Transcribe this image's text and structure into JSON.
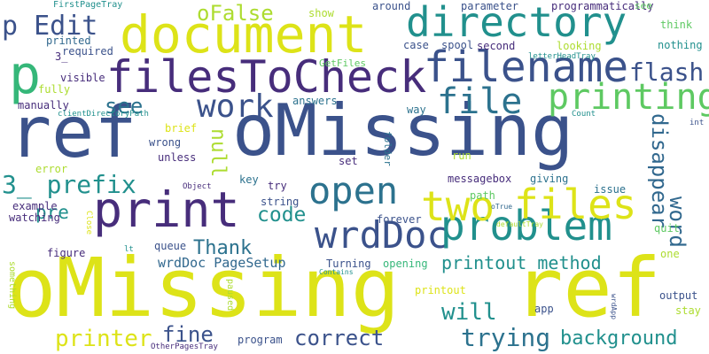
{
  "colors": {
    "background": "#ffffff",
    "navy": "#3b528b",
    "purple": "#472d7b",
    "teal": "#21908d",
    "teal_blue": "#2c728e",
    "green": "#5ec962",
    "bright_green": "#35b779",
    "yellow_green": "#addc30",
    "yellow": "#dde318",
    "blue": "#31688e"
  },
  "words": [
    {
      "text": "oMissing",
      "color": "#dde318"
    },
    {
      "text": "ref",
      "color": "#3b528b"
    },
    {
      "text": "oMissing",
      "color": "#3b528b"
    },
    {
      "text": "ref",
      "color": "#dde318"
    },
    {
      "text": "document",
      "color": "#dde318"
    },
    {
      "text": "directory",
      "color": "#21908d"
    },
    {
      "text": "filesToCheck",
      "color": "#472d7b"
    },
    {
      "text": "filename",
      "color": "#3b528b"
    },
    {
      "text": "print",
      "color": "#472d7b"
    },
    {
      "text": "wrdDoc",
      "color": "#3b528b"
    },
    {
      "text": "problem",
      "color": "#21908d"
    },
    {
      "text": "open",
      "color": "#2c728e"
    },
    {
      "text": "two",
      "color": "#dde318"
    },
    {
      "text": "files",
      "color": "#dde318"
    },
    {
      "text": "file",
      "color": "#2c728e"
    },
    {
      "text": "printing",
      "color": "#5ec962"
    },
    {
      "text": "work",
      "color": "#3b528b"
    },
    {
      "text": "p Edit",
      "color": "#3b528b"
    },
    {
      "text": "p",
      "color": "#35b779"
    },
    {
      "text": "oFalse",
      "color": "#addc30"
    },
    {
      "text": "flash",
      "color": "#3b528b"
    },
    {
      "text": "3_ prefix",
      "color": "#21908d"
    },
    {
      "text": "code",
      "color": "#21908d"
    },
    {
      "text": "pre",
      "color": "#21908d"
    },
    {
      "text": "Thank",
      "color": "#2c728e"
    },
    {
      "text": "see",
      "color": "#2c728e"
    },
    {
      "text": "null",
      "color": "#addc30"
    },
    {
      "text": "word",
      "color": "#31688e"
    },
    {
      "text": "disappear",
      "color": "#31688e"
    },
    {
      "text": "printout method",
      "color": "#21908d"
    },
    {
      "text": "will",
      "color": "#21908d"
    },
    {
      "text": "trying",
      "color": "#2c728e"
    },
    {
      "text": "background",
      "color": "#21908d"
    },
    {
      "text": "correct",
      "color": "#3b528b"
    },
    {
      "text": "fine",
      "color": "#3b528b"
    },
    {
      "text": "printer",
      "color": "#dde318"
    },
    {
      "text": "wrdDoc PageSetup",
      "color": "#31688e"
    },
    {
      "text": "FirstPageTray",
      "color": "#21908d"
    },
    {
      "text": "show",
      "color": "#addc30"
    },
    {
      "text": "around",
      "color": "#3b528b"
    },
    {
      "text": "parameter",
      "color": "#3b528b"
    },
    {
      "text": "programmatically",
      "color": "#472d7b"
    },
    {
      "text": "see",
      "color": "#5ec962"
    },
    {
      "text": "think",
      "color": "#5ec962"
    },
    {
      "text": "printed",
      "color": "#31688e"
    },
    {
      "text": "3_",
      "color": "#472d7b"
    },
    {
      "text": "required",
      "color": "#3b528b"
    },
    {
      "text": "case",
      "color": "#3b528b"
    },
    {
      "text": "spool",
      "color": "#3b528b"
    },
    {
      "text": "second",
      "color": "#472d7b"
    },
    {
      "text": "looking",
      "color": "#addc30"
    },
    {
      "text": "nothing",
      "color": "#21908d"
    },
    {
      "text": "GetFiles",
      "color": "#5ec962"
    },
    {
      "text": "letterHeadTray",
      "color": "#21908d"
    },
    {
      "text": "visible",
      "color": "#472d7b"
    },
    {
      "text": "fully",
      "color": "#addc30"
    },
    {
      "text": "manually",
      "color": "#472d7b"
    },
    {
      "text": "clientDirectoryPath",
      "color": "#21908d"
    },
    {
      "text": "answers",
      "color": "#2c728e"
    },
    {
      "text": "way",
      "color": "#2c728e"
    },
    {
      "text": "Count",
      "color": "#21908d"
    },
    {
      "text": "brief",
      "color": "#dde318"
    },
    {
      "text": "wrong",
      "color": "#3b528b"
    },
    {
      "text": "unless",
      "color": "#472d7b"
    },
    {
      "text": "set",
      "color": "#472d7b"
    },
    {
      "text": "folder",
      "color": "#2c728e"
    },
    {
      "text": "run",
      "color": "#addc30"
    },
    {
      "text": "error",
      "color": "#addc30"
    },
    {
      "text": "Object",
      "color": "#472d7b"
    },
    {
      "text": "key",
      "color": "#2c728e"
    },
    {
      "text": "try",
      "color": "#472d7b"
    },
    {
      "text": "messagebox",
      "color": "#472d7b"
    },
    {
      "text": "giving",
      "color": "#2c728e"
    },
    {
      "text": "issue",
      "color": "#2c728e"
    },
    {
      "text": "example",
      "color": "#472d7b"
    },
    {
      "text": "path",
      "color": "#5ec962"
    },
    {
      "text": "oTrue",
      "color": "#31688e"
    },
    {
      "text": "watching",
      "color": "#472d7b"
    },
    {
      "text": "string",
      "color": "#3b528b"
    },
    {
      "text": "forever",
      "color": "#3b528b"
    },
    {
      "text": "Close",
      "color": "#dde318"
    },
    {
      "text": "queue",
      "color": "#3b528b"
    },
    {
      "text": "defaultTray",
      "color": "#addc30"
    },
    {
      "text": "lt",
      "color": "#21908d"
    },
    {
      "text": "quit",
      "color": "#5ec962"
    },
    {
      "text": "one",
      "color": "#addc30"
    },
    {
      "text": "figure",
      "color": "#472d7b"
    },
    {
      "text": "Turning",
      "color": "#3b528b"
    },
    {
      "text": "Contains",
      "color": "#21908d"
    },
    {
      "text": "opening",
      "color": "#35b779"
    },
    {
      "text": "something",
      "color": "#addc30"
    },
    {
      "text": "paused",
      "color": "#addc30"
    },
    {
      "text": "printout",
      "color": "#dde318"
    },
    {
      "text": "output",
      "color": "#3b528b"
    },
    {
      "text": "wrdApp",
      "color": "#3b528b"
    },
    {
      "text": "app",
      "color": "#3b528b"
    },
    {
      "text": "stay",
      "color": "#addc30"
    },
    {
      "text": "program",
      "color": "#3b528b"
    },
    {
      "text": "OtherPagesTray",
      "color": "#472d7b"
    },
    {
      "text": "int",
      "color": "#3b528b"
    }
  ]
}
